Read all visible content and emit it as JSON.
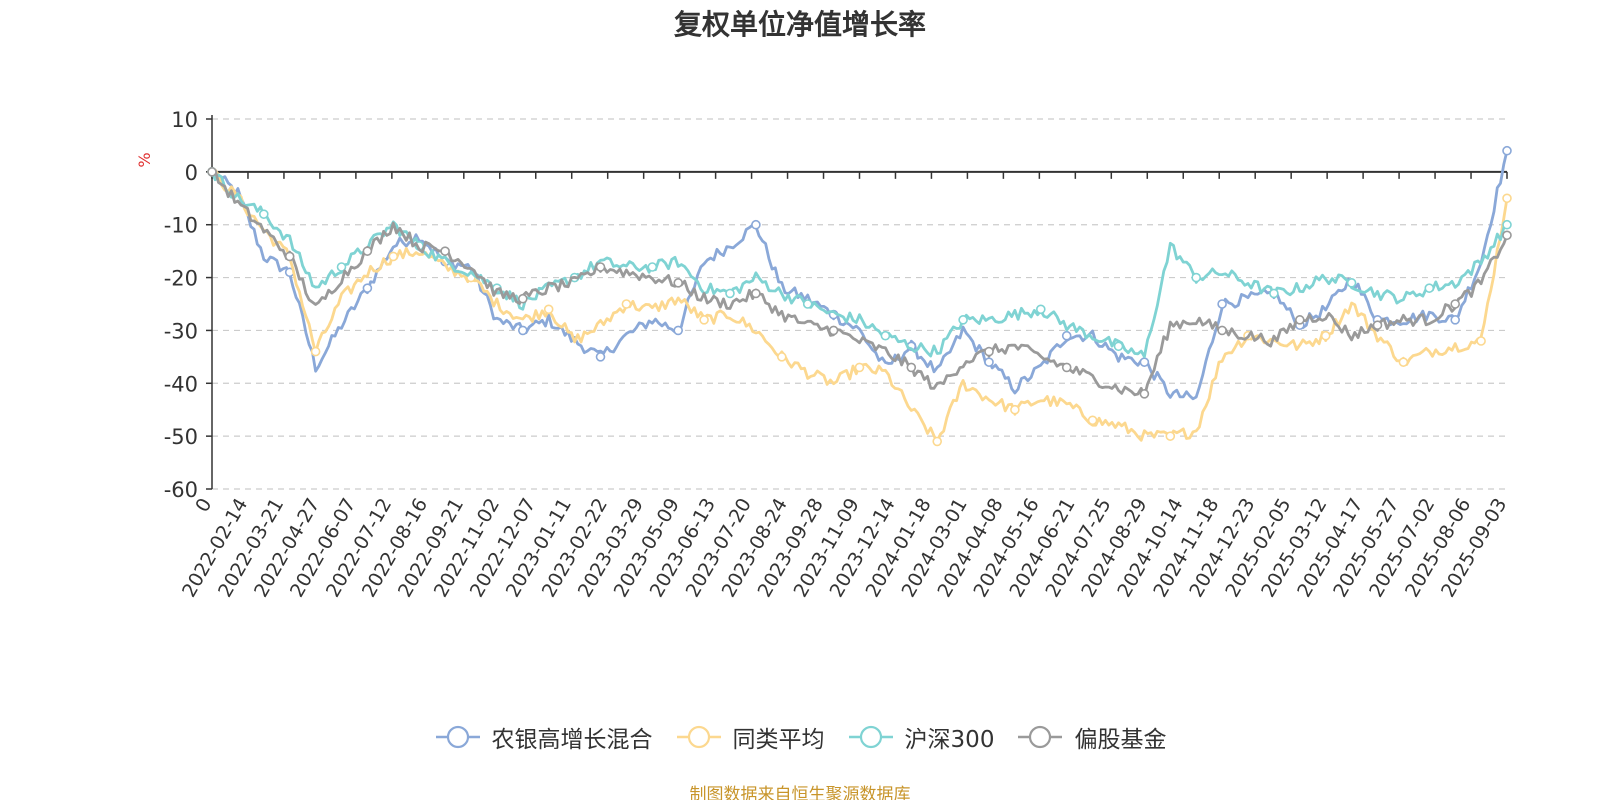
{
  "chart_data": {
    "type": "line",
    "title": "复权单位净值增长率",
    "ylabel": "%",
    "ylim": [
      -60,
      10
    ],
    "yticks": [
      10,
      0,
      -10,
      -20,
      -30,
      -40,
      -50,
      -60
    ],
    "grid": true,
    "legend_position": "bottom-center",
    "x_tick_labels": [
      "0",
      "2022-02-14",
      "2022-03-21",
      "2022-04-27",
      "2022-06-07",
      "2022-07-12",
      "2022-08-16",
      "2022-09-21",
      "2022-11-02",
      "2022-12-07",
      "2023-01-11",
      "2023-02-22",
      "2023-03-29",
      "2023-05-09",
      "2023-06-13",
      "2023-07-20",
      "2023-08-24",
      "2023-09-28",
      "2023-11-09",
      "2023-12-14",
      "2024-01-18",
      "2024-03-01",
      "2024-04-08",
      "2024-05-16",
      "2024-06-21",
      "2024-07-25",
      "2024-08-29",
      "2024-10-14",
      "2024-11-18",
      "2024-12-23",
      "2025-02-05",
      "2025-03-12",
      "2025-04-17",
      "2025-05-27",
      "2025-07-02",
      "2025-08-06",
      "2025-09-03"
    ],
    "series": [
      {
        "name": "农银高增长混合",
        "color": "#8aa8d8",
        "values": [
          0,
          -4,
          -16,
          -19,
          -37,
          -29,
          -22,
          -14,
          -12,
          -17,
          -18,
          -28,
          -30,
          -28,
          -32,
          -35,
          -31,
          -28,
          -30,
          -17,
          -14,
          -10,
          -22,
          -24,
          -27,
          -30,
          -37,
          -33,
          -38,
          -30,
          -36,
          -41,
          -37,
          -31,
          -31,
          -35,
          -36,
          -42,
          -43,
          -25,
          -24,
          -23,
          -29,
          -26,
          -20,
          -28,
          -28,
          -27,
          -28,
          -17,
          4
        ]
      },
      {
        "name": "同类平均",
        "color": "#fcd88f",
        "values": [
          0,
          -5,
          -11,
          -16,
          -34,
          -24,
          -19,
          -16,
          -15,
          -18,
          -20,
          -25,
          -28,
          -26,
          -32,
          -29,
          -25,
          -26,
          -24,
          -28,
          -27,
          -30,
          -35,
          -38,
          -40,
          -37,
          -38,
          -45,
          -51,
          -40,
          -43,
          -45,
          -43,
          -44,
          -47,
          -48,
          -50,
          -50,
          -49,
          -35,
          -31,
          -32,
          -33,
          -31,
          -25,
          -31,
          -36,
          -34,
          -33,
          -32,
          -5
        ]
      },
      {
        "name": "沪深300",
        "color": "#7fd3d3",
        "values": [
          0,
          -5,
          -8,
          -13,
          -22,
          -18,
          -14,
          -10,
          -14,
          -17,
          -19,
          -22,
          -25,
          -22,
          -20,
          -17,
          -18,
          -18,
          -17,
          -22,
          -23,
          -20,
          -23,
          -25,
          -27,
          -28,
          -31,
          -33,
          -34,
          -28,
          -28,
          -27,
          -26,
          -29,
          -31,
          -33,
          -35,
          -14,
          -20,
          -19,
          -21,
          -23,
          -22,
          -20,
          -21,
          -23,
          -24,
          -22,
          -21,
          -17,
          -10
        ]
      },
      {
        "name": "偏股基金",
        "color": "#9a9a9a",
        "values": [
          0,
          -6,
          -11,
          -16,
          -26,
          -20,
          -15,
          -10,
          -14,
          -15,
          -18,
          -23,
          -24,
          -22,
          -21,
          -18,
          -19,
          -20,
          -21,
          -24,
          -25,
          -23,
          -27,
          -29,
          -30,
          -32,
          -34,
          -37,
          -41,
          -36,
          -34,
          -33,
          -35,
          -37,
          -39,
          -41,
          -42,
          -29,
          -28,
          -30,
          -31,
          -32,
          -28,
          -27,
          -31,
          -29,
          -28,
          -28,
          -25,
          -21,
          -12
        ]
      }
    ]
  },
  "source_note": "制图数据来自恒生聚源数据库"
}
